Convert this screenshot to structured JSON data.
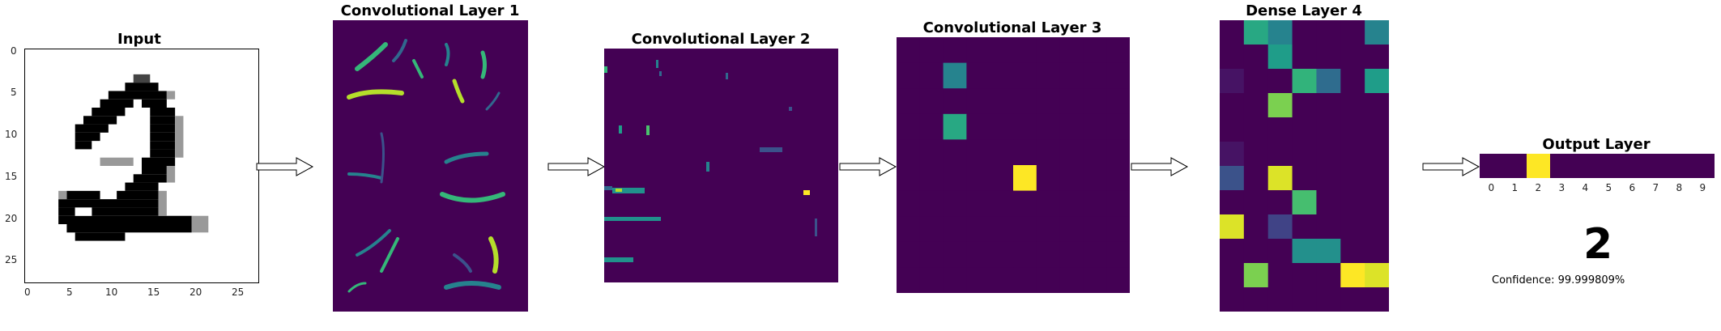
{
  "titles": {
    "input": "Input",
    "conv1": "Convolutional Layer 1",
    "conv2": "Convolutional Layer 2",
    "conv3": "Convolutional Layer 3",
    "dense4": "Dense Layer 4",
    "output": "Output Layer"
  },
  "colors": {
    "viridis_low": "#440154",
    "viridis_high": "#fde725",
    "input_ink": "#000000",
    "input_bg": "#ffffff"
  },
  "input_axes": {
    "x_ticks": [
      "0",
      "5",
      "10",
      "15",
      "20",
      "25"
    ],
    "y_ticks": [
      "0",
      "5",
      "10",
      "15",
      "20",
      "25"
    ]
  },
  "output_axis": {
    "x_ticks": [
      "0",
      "1",
      "2",
      "3",
      "4",
      "5",
      "6",
      "7",
      "8",
      "9"
    ]
  },
  "prediction": "2",
  "confidence_text": "Confidence: 99.999809%",
  "chart_data": [
    {
      "type": "heatmap",
      "title": "Input",
      "colormap": "gray_r",
      "rows": 28,
      "cols": 28,
      "xlim": [
        0,
        27
      ],
      "ylim": [
        27,
        0
      ],
      "grid": false
    },
    {
      "type": "heatmap",
      "title": "Convolutional Layer 1",
      "colormap": "viridis",
      "grid": false
    },
    {
      "type": "heatmap",
      "title": "Convolutional Layer 2",
      "colormap": "viridis",
      "grid": false
    },
    {
      "type": "heatmap",
      "title": "Convolutional Layer 3",
      "colormap": "viridis",
      "rows": 10,
      "cols": 10,
      "values": [
        [
          0,
          0,
          0,
          0,
          0,
          0,
          0,
          0,
          0,
          0
        ],
        [
          0,
          0,
          0.45,
          0,
          0,
          0,
          0,
          0,
          0,
          0
        ],
        [
          0,
          0,
          0,
          0,
          0,
          0,
          0,
          0,
          0,
          0
        ],
        [
          0,
          0,
          0.6,
          0,
          0,
          0,
          0,
          0,
          0,
          0
        ],
        [
          0,
          0,
          0,
          0,
          0,
          0,
          0,
          0,
          0,
          0
        ],
        [
          0,
          0,
          0,
          0,
          0,
          1,
          0,
          0,
          0,
          0
        ],
        [
          0,
          0,
          0,
          0,
          0,
          0,
          0,
          0,
          0,
          0
        ],
        [
          0,
          0,
          0,
          0,
          0,
          0,
          0,
          0,
          0,
          0
        ],
        [
          0,
          0,
          0,
          0,
          0,
          0,
          0,
          0,
          0,
          0
        ],
        [
          0,
          0,
          0,
          0,
          0,
          0,
          0,
          0,
          0,
          0
        ]
      ]
    },
    {
      "type": "heatmap",
      "title": "Dense Layer 4",
      "colormap": "viridis",
      "rows": 12,
      "cols": 7,
      "values": [
        [
          0,
          0.6,
          0.45,
          0,
          0,
          0,
          0.45
        ],
        [
          0,
          0,
          0.55,
          0,
          0,
          0,
          0
        ],
        [
          0.05,
          0,
          0,
          0.65,
          0.35,
          0,
          0.55
        ],
        [
          0,
          0,
          0.8,
          0,
          0,
          0,
          0
        ],
        [
          0,
          0,
          0,
          0,
          0,
          0,
          0
        ],
        [
          0.05,
          0,
          0,
          0,
          0,
          0,
          0
        ],
        [
          0.25,
          0,
          0.95,
          0,
          0,
          0,
          0
        ],
        [
          0,
          0,
          0,
          0.7,
          0,
          0,
          0
        ],
        [
          0.95,
          0,
          0.2,
          0,
          0,
          0,
          0
        ],
        [
          0,
          0,
          0,
          0.5,
          0.5,
          0,
          0
        ],
        [
          0,
          0.8,
          0,
          0,
          0,
          1,
          0.95
        ],
        [
          0,
          0,
          0,
          0,
          0,
          0,
          0
        ]
      ]
    },
    {
      "type": "heatmap",
      "title": "Output Layer",
      "colormap": "viridis",
      "categories": [
        "0",
        "1",
        "2",
        "3",
        "4",
        "5",
        "6",
        "7",
        "8",
        "9"
      ],
      "values": [
        0,
        0,
        1,
        0,
        0,
        0,
        0,
        0,
        0,
        0
      ]
    }
  ]
}
